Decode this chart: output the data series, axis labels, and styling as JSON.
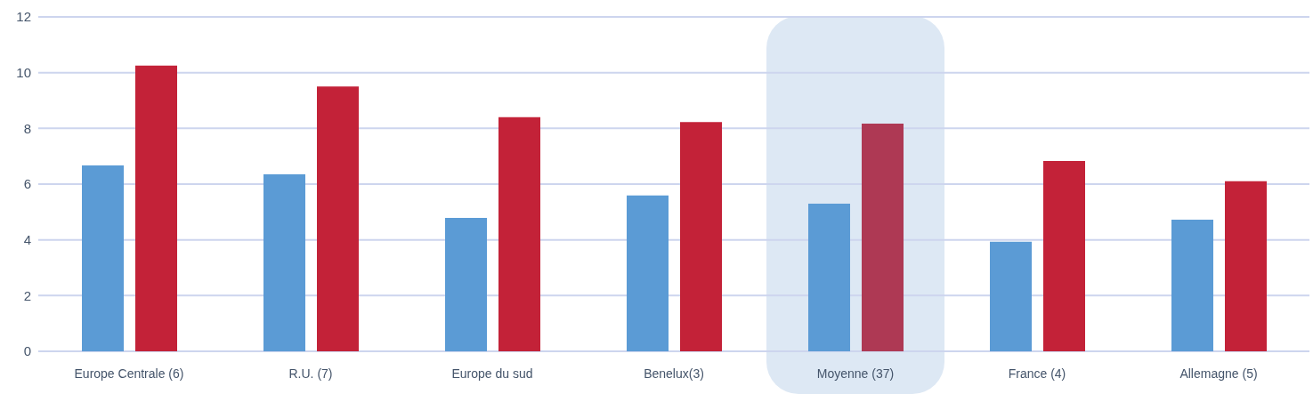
{
  "chart_data": {
    "type": "bar",
    "categories": [
      "Europe Centrale (6)",
      "R.U. (7)",
      "Europe du sud",
      "Benelux(3)",
      "Moyenne (37)",
      "France (4)",
      "Allemagne (5)"
    ],
    "series": [
      {
        "color": "#5b9bd5",
        "values": [
          6.67,
          6.35,
          4.79,
          5.59,
          5.3,
          3.93,
          4.72
        ]
      },
      {
        "color": "#c32238",
        "colors": [
          "#c32238",
          "#c32238",
          "#c32238",
          "#c32238",
          "#ae3954",
          "#c32238",
          "#c32238"
        ],
        "values": [
          10.25,
          9.5,
          8.4,
          8.23,
          8.17,
          6.83,
          6.1
        ]
      }
    ],
    "ylim": [
      0,
      12
    ],
    "yticks": [
      0,
      2,
      4,
      6,
      8,
      10,
      12
    ],
    "grid": "y",
    "legend": false,
    "bands": [
      {
        "axis": "x",
        "from": "Moyenne (37)",
        "to": "Moyenne (37)",
        "color": "#dde8f4"
      }
    ]
  }
}
